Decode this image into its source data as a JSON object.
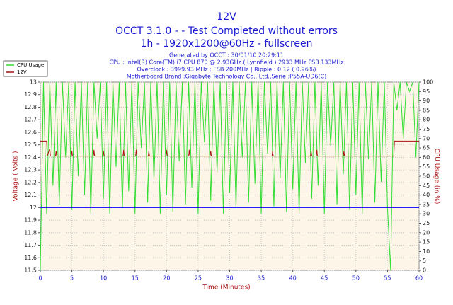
{
  "chart_data": {
    "type": "line",
    "title": "12V",
    "subtitle": "OCCT 3.1.0 -  - Test Completed without errors",
    "subtitle2": "1h - 1920x1200@60Hz - fullscreen",
    "info": [
      "Generated by OCCT : 30/01/10 20:29:11",
      "CPU : Intel(R) Core(TM) i7 CPU 870 @ 2.93GHz ( Lynnfield ) 2933 MHz FSB 133MHz",
      "Overclock : 3999.93 MHz ; FSB 200MHz | Ripple : 0.12 ( 0.96%)",
      "Motherboard Brand :Gigabyte Technology Co., Ltd.,Serie :P55A-UD6(C)"
    ],
    "xlabel": "Time (Minutes)",
    "ylabel": "Voltage ( Volts )",
    "y2label": "CPU Usage (in %)",
    "xlim": [
      0,
      60
    ],
    "xticks": [
      0,
      5,
      10,
      15,
      20,
      25,
      30,
      35,
      40,
      45,
      50,
      55,
      60
    ],
    "ylim": [
      11.5,
      13
    ],
    "yticks": [
      11.5,
      11.6,
      11.7,
      11.8,
      11.9,
      12,
      12.1,
      12.2,
      12.3,
      12.4,
      12.5,
      12.6,
      12.7,
      12.8,
      12.9,
      13
    ],
    "y2lim": [
      0,
      100
    ],
    "y2ticks": [
      0,
      5,
      10,
      15,
      20,
      25,
      30,
      35,
      40,
      45,
      50,
      55,
      60,
      65,
      70,
      75,
      80,
      85,
      90,
      95,
      100
    ],
    "grid": true,
    "reference_line": {
      "value": 12,
      "color": "#0000ff"
    },
    "legend": "top-left",
    "series": [
      {
        "name": "CPU Usage",
        "color": "#33dd33",
        "axis": "y2",
        "x": [
          0,
          0.5,
          1,
          1.5,
          2,
          2.5,
          3,
          3.5,
          4,
          4.5,
          5,
          5.5,
          6,
          6.5,
          7,
          7.5,
          8,
          8.5,
          9,
          9.5,
          10,
          10.5,
          11,
          11.5,
          12,
          12.5,
          13,
          13.5,
          14,
          14.5,
          15,
          15.5,
          16,
          16.5,
          17,
          17.5,
          18,
          18.5,
          19,
          19.5,
          20,
          20.5,
          21,
          21.5,
          22,
          22.5,
          23,
          23.5,
          24,
          24.5,
          25,
          25.5,
          26,
          26.5,
          27,
          27.5,
          28,
          28.5,
          29,
          29.5,
          30,
          30.5,
          31,
          31.5,
          32,
          32.5,
          33,
          33.5,
          34,
          34.5,
          35,
          35.5,
          36,
          36.5,
          37,
          37.5,
          38,
          38.5,
          39,
          39.5,
          40,
          40.5,
          41,
          41.5,
          42,
          42.5,
          43,
          43.5,
          44,
          44.5,
          45,
          45.5,
          46,
          46.5,
          47,
          47.5,
          48,
          48.5,
          49,
          49.5,
          50,
          50.5,
          51,
          51.5,
          52,
          52.5,
          53,
          53.5,
          54,
          54.5,
          55,
          55.5,
          56,
          56.5,
          57,
          57.5,
          58,
          58.5,
          59,
          59.5,
          60
        ],
        "values": [
          0,
          100,
          30,
          100,
          45,
          100,
          35,
          100,
          60,
          100,
          32,
          100,
          50,
          100,
          40,
          100,
          30,
          100,
          70,
          100,
          38,
          100,
          30,
          100,
          55,
          100,
          33,
          100,
          42,
          100,
          30,
          100,
          65,
          100,
          36,
          100,
          48,
          100,
          30,
          100,
          40,
          100,
          31,
          100,
          58,
          100,
          35,
          100,
          44,
          100,
          30,
          100,
          68,
          100,
          37,
          100,
          52,
          100,
          30,
          100,
          41,
          100,
          33,
          100,
          60,
          100,
          36,
          100,
          46,
          100,
          30,
          100,
          62,
          100,
          34,
          100,
          49,
          100,
          31,
          100,
          43,
          100,
          30,
          100,
          57,
          100,
          38,
          100,
          45,
          100,
          30,
          100,
          66,
          100,
          35,
          100,
          51,
          100,
          32,
          100,
          40,
          100,
          30,
          100,
          59,
          100,
          36,
          100,
          47,
          100,
          33,
          0,
          100,
          85,
          100,
          70,
          100,
          95,
          100,
          60,
          100
        ]
      },
      {
        "name": "12V",
        "color": "#aa1111",
        "x": [
          0,
          1,
          1.1,
          1.5,
          1.6,
          2.4,
          2.5,
          2.6,
          4.9,
          5,
          5.1,
          8.4,
          8.5,
          8.6,
          9.9,
          10,
          10.1,
          13.1,
          13.2,
          13.3,
          15.1,
          15.2,
          15.3,
          17.1,
          17.2,
          17.3,
          19.9,
          20,
          20.1,
          23.5,
          23.6,
          23.7,
          26.9,
          27,
          27.1,
          36.7,
          36.8,
          36.9,
          42.8,
          42.9,
          43,
          43.7,
          43.8,
          43.9,
          48,
          48.1,
          48.2,
          56,
          56.1,
          60
        ],
        "values": [
          12.53,
          12.53,
          12.41,
          12.47,
          12.41,
          12.41,
          12.45,
          12.41,
          12.41,
          12.45,
          12.41,
          12.41,
          12.46,
          12.41,
          12.41,
          12.45,
          12.41,
          12.41,
          12.46,
          12.41,
          12.41,
          12.46,
          12.41,
          12.41,
          12.45,
          12.41,
          12.41,
          12.46,
          12.41,
          12.41,
          12.46,
          12.41,
          12.41,
          12.45,
          12.41,
          12.41,
          12.45,
          12.41,
          12.41,
          12.45,
          12.41,
          12.41,
          12.46,
          12.41,
          12.41,
          12.45,
          12.41,
          12.41,
          12.53,
          12.53
        ]
      }
    ]
  }
}
